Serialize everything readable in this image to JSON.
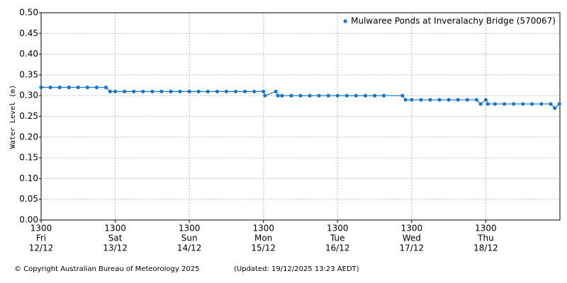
{
  "chart_data": {
    "type": "line",
    "y_label": "Water Level (m)",
    "copyright": "© Copyright Australian Bureau of Meteorology 2025",
    "updated": "(Updated: 19/12/2025 13:23 AEDT)",
    "xlim": [
      "12/12 13:00",
      "19/12 13:00"
    ],
    "xticks": [
      {
        "value": "12/12 13:00",
        "label": [
          "1300",
          "Fri",
          "12/12"
        ]
      },
      {
        "value": "13/12 13:00",
        "label": [
          "1300",
          "Sat",
          "13/12"
        ]
      },
      {
        "value": "14/12 13:00",
        "label": [
          "1300",
          "Sun",
          "14/12"
        ]
      },
      {
        "value": "15/12 13:00",
        "label": [
          "1300",
          "Mon",
          "15/12"
        ]
      },
      {
        "value": "16/12 13:00",
        "label": [
          "1300",
          "Tue",
          "16/12"
        ]
      },
      {
        "value": "17/12 13:00",
        "label": [
          "1300",
          "Wed",
          "17/12"
        ]
      },
      {
        "value": "18/12 13:00",
        "label": [
          "1300",
          "Thu",
          "18/12"
        ]
      }
    ],
    "ylim": [
      0,
      0.5
    ],
    "yticks": [
      {
        "value": 0,
        "label": "0.00"
      },
      0.05,
      {
        "value": 0.1,
        "label": "0.10"
      },
      0.15,
      {
        "value": 0.2,
        "label": "0.20"
      },
      0.25,
      {
        "value": 0.3,
        "label": "0.30"
      },
      0.35,
      {
        "value": 0.4,
        "label": "0.40"
      },
      0.45,
      {
        "value": 0.5,
        "label": "0.50"
      }
    ],
    "grid": true,
    "legend": "upper right",
    "x": [
      "12/12 13:00",
      "12/12 16:00",
      "12/12 19:00",
      "12/12 22:00",
      "13/12 01:00",
      "13/12 04:00",
      "13/12 07:00",
      "13/12 10:00",
      "13/12 11:20",
      "13/12 13:00",
      "13/12 16:00",
      "13/12 19:00",
      "13/12 22:00",
      "14/12 01:00",
      "14/12 04:00",
      "14/12 07:00",
      "14/12 10:00",
      "14/12 13:00",
      "14/12 16:00",
      "14/12 19:00",
      "14/12 22:00",
      "15/12 01:00",
      "15/12 04:00",
      "15/12 07:00",
      "15/12 10:00",
      "15/12 13:00",
      "15/12 13:30",
      "15/12 17:00",
      "15/12 17:40",
      "15/12 19:00",
      "15/12 22:00",
      "16/12 01:00",
      "16/12 04:00",
      "16/12 07:00",
      "16/12 10:00",
      "16/12 13:00",
      "16/12 16:00",
      "16/12 19:00",
      "16/12 22:00",
      "17/12 01:00",
      "17/12 04:00",
      "17/12 10:00",
      "17/12 11:00",
      "17/12 13:00",
      "17/12 16:00",
      "17/12 19:00",
      "17/12 22:00",
      "18/12 01:00",
      "18/12 04:00",
      "18/12 07:00",
      "18/12 10:00",
      "18/12 11:20",
      "18/12 13:00",
      "18/12 13:40",
      "18/12 16:00",
      "18/12 19:00",
      "18/12 22:00",
      "19/12 01:00",
      "19/12 04:00",
      "19/12 07:00",
      "19/12 10:00",
      "19/12 11:20",
      "19/12 12:50"
    ],
    "series": [
      {
        "name": "Mulwaree Ponds at Inveralachy Bridge (570067)",
        "color": "#1874cd",
        "values": [
          0.32,
          0.32,
          0.32,
          0.32,
          0.32,
          0.32,
          0.32,
          0.32,
          0.31,
          0.31,
          0.31,
          0.31,
          0.31,
          0.31,
          0.31,
          0.31,
          0.31,
          0.31,
          0.31,
          0.31,
          0.31,
          0.31,
          0.31,
          0.31,
          0.31,
          0.31,
          0.3,
          0.31,
          0.3,
          0.3,
          0.3,
          0.3,
          0.3,
          0.3,
          0.3,
          0.3,
          0.3,
          0.3,
          0.3,
          0.3,
          0.3,
          0.3,
          0.29,
          0.29,
          0.29,
          0.29,
          0.29,
          0.29,
          0.29,
          0.29,
          0.29,
          0.28,
          0.29,
          0.28,
          0.28,
          0.28,
          0.28,
          0.28,
          0.28,
          0.28,
          0.28,
          0.27,
          0.28
        ]
      }
    ]
  }
}
